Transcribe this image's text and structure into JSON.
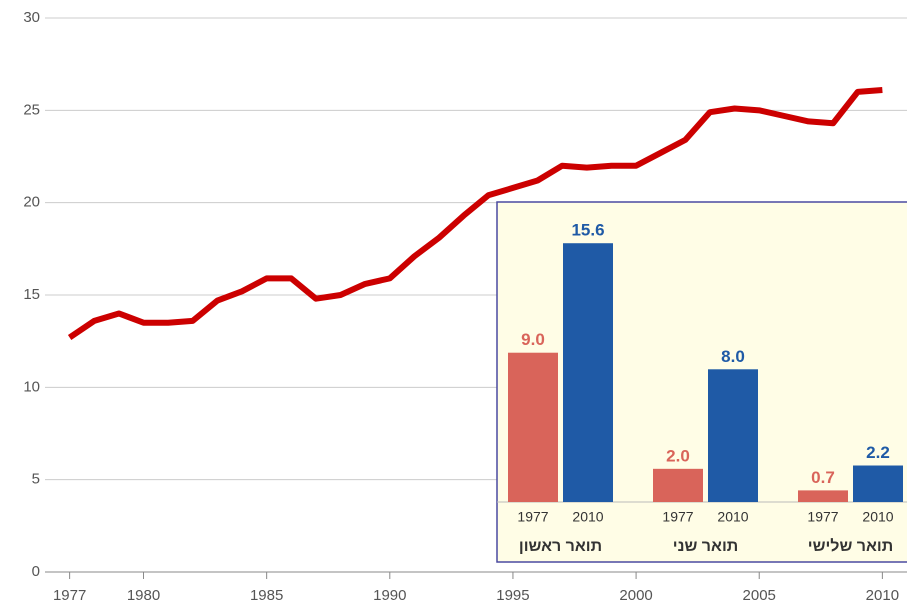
{
  "chart_data": [
    {
      "type": "line",
      "x": [
        1977,
        1978,
        1979,
        1980,
        1981,
        1982,
        1983,
        1984,
        1985,
        1986,
        1987,
        1988,
        1989,
        1990,
        1991,
        1992,
        1993,
        1994,
        1995,
        1996,
        1997,
        1998,
        1999,
        2000,
        2001,
        2002,
        2003,
        2004,
        2005,
        2006,
        2007,
        2008,
        2009,
        2010
      ],
      "series": [
        {
          "color": "#cc0000",
          "values": [
            12.7,
            13.6,
            14.0,
            13.5,
            13.5,
            13.6,
            14.7,
            15.2,
            15.9,
            15.9,
            14.8,
            15.0,
            15.6,
            15.9,
            17.1,
            18.1,
            19.3,
            20.4,
            20.8,
            21.2,
            22.0,
            21.9,
            22.0,
            22.0,
            22.7,
            23.4,
            24.9,
            25.1,
            25.0,
            24.7,
            24.4,
            24.3,
            26.0,
            26.1
          ]
        }
      ],
      "xlim": [
        1976,
        2011
      ],
      "xticks": [
        1977,
        1980,
        1985,
        1990,
        1995,
        2000,
        2005,
        2010
      ],
      "ylim": [
        0,
        30
      ],
      "yticks": [
        0,
        5,
        10,
        15,
        20,
        25,
        30
      ],
      "grid": true
    },
    {
      "type": "bar",
      "categories": [
        "תואר ראשון",
        "תואר שני",
        "תואר שלישי"
      ],
      "series": [
        {
          "name": "1977",
          "color": "#d9645a",
          "values": [
            9.0,
            2.0,
            0.7
          ],
          "value_labels": [
            "9.0",
            "2.0",
            "0.7"
          ]
        },
        {
          "name": "2010",
          "color": "#1f5aa6",
          "values": [
            15.6,
            8.0,
            2.2
          ],
          "value_labels": [
            "15.6",
            "8.0",
            "2.2"
          ]
        }
      ],
      "ylim": [
        0,
        17
      ]
    }
  ]
}
